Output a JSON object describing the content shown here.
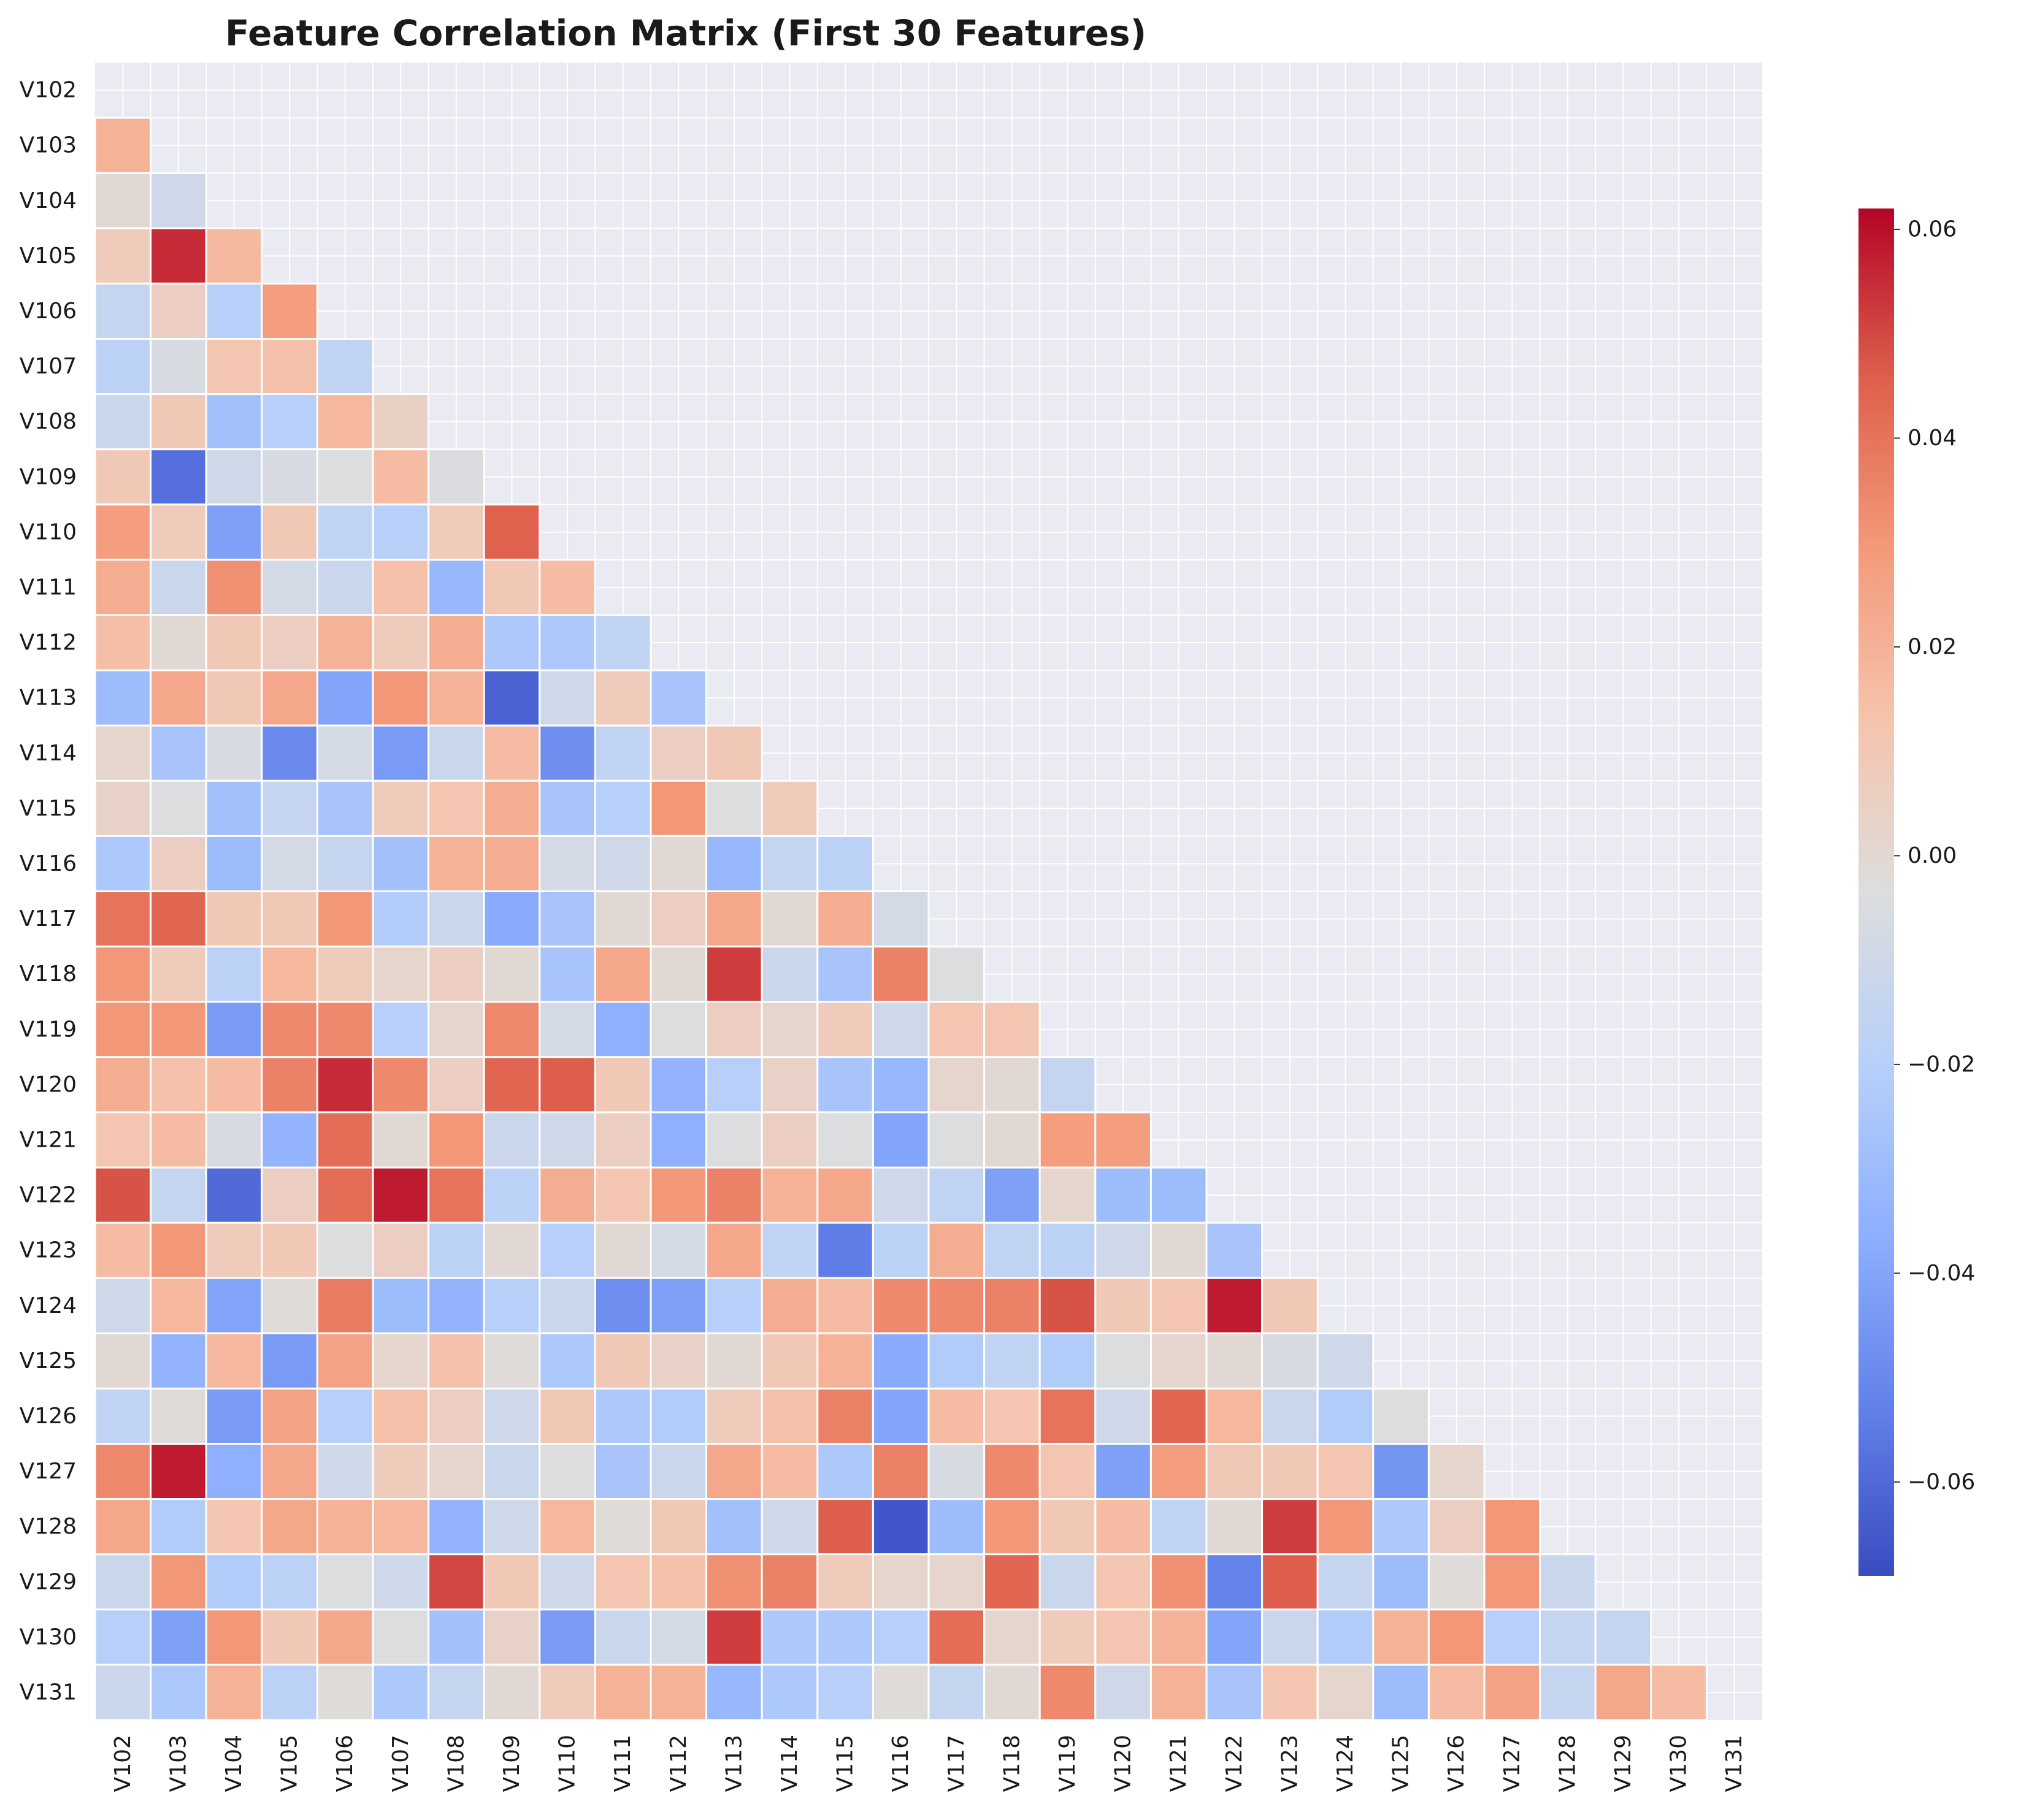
{
  "chart_data": {
    "type": "heatmap",
    "title": "Feature Correlation Matrix (First 30 Features)",
    "xlabel": "",
    "ylabel": "",
    "mask": "upper-triangle including diagonal",
    "labels": [
      "V102",
      "V103",
      "V104",
      "V105",
      "V106",
      "V107",
      "V108",
      "V109",
      "V110",
      "V111",
      "V112",
      "V113",
      "V114",
      "V115",
      "V116",
      "V117",
      "V118",
      "V119",
      "V120",
      "V121",
      "V122",
      "V123",
      "V124",
      "V125",
      "V126",
      "V127",
      "V128",
      "V129",
      "V130",
      "V131"
    ],
    "colormap": "coolwarm",
    "grid": true,
    "grid_color": "#ffffff",
    "background_color": "#eaeaf2",
    "colorbar": {
      "placement": "right",
      "range": [
        -0.069,
        0.062
      ],
      "ticks": [
        -0.06,
        -0.04,
        -0.02,
        0.0,
        0.02,
        0.04,
        0.06
      ],
      "tick_labels": [
        "−0.06",
        "−0.04",
        "−0.02",
        "0.00",
        "0.02",
        "0.04",
        "0.06"
      ]
    },
    "values": [
      [],
      [
        0.02
      ],
      [
        0.0,
        -0.01
      ],
      [
        0.008,
        0.055,
        0.017
      ],
      [
        -0.014,
        0.006,
        -0.02,
        0.028
      ],
      [
        -0.018,
        -0.006,
        0.012,
        0.014,
        -0.016
      ],
      [
        -0.012,
        0.01,
        -0.028,
        -0.02,
        0.018,
        0.005
      ],
      [
        0.01,
        -0.058,
        -0.01,
        -0.006,
        -0.004,
        0.016,
        -0.005
      ],
      [
        0.028,
        0.008,
        -0.042,
        0.01,
        -0.016,
        -0.02,
        0.008,
        0.045
      ],
      [
        0.022,
        -0.012,
        0.032,
        -0.008,
        -0.012,
        0.014,
        -0.032,
        0.01,
        0.016
      ],
      [
        0.015,
        0.0,
        0.01,
        0.006,
        0.02,
        0.008,
        0.022,
        -0.024,
        -0.024,
        -0.016
      ],
      [
        -0.03,
        0.024,
        0.01,
        0.024,
        -0.04,
        0.03,
        0.02,
        -0.062,
        -0.01,
        0.008,
        -0.026
      ],
      [
        0.002,
        -0.026,
        -0.006,
        -0.05,
        -0.008,
        -0.044,
        -0.012,
        0.016,
        -0.048,
        -0.016,
        0.006,
        0.01
      ],
      [
        0.004,
        -0.004,
        -0.028,
        -0.014,
        -0.026,
        0.008,
        0.012,
        0.022,
        -0.026,
        -0.02,
        0.03,
        -0.004,
        0.008
      ],
      [
        -0.024,
        0.006,
        -0.03,
        -0.008,
        -0.014,
        -0.028,
        0.02,
        0.022,
        -0.008,
        -0.01,
        0.0,
        -0.032,
        -0.014,
        -0.018
      ],
      [
        0.04,
        0.044,
        0.01,
        0.01,
        0.03,
        -0.022,
        -0.012,
        -0.038,
        -0.026,
        0.0,
        0.006,
        0.024,
        0.0,
        0.022,
        -0.008
      ],
      [
        0.03,
        0.008,
        -0.018,
        0.018,
        0.008,
        0.002,
        0.006,
        0.0,
        -0.026,
        0.024,
        0.0,
        0.052,
        -0.012,
        -0.026,
        0.036,
        -0.004
      ],
      [
        0.03,
        0.03,
        -0.044,
        0.034,
        0.034,
        -0.02,
        0.002,
        0.034,
        -0.008,
        -0.036,
        -0.004,
        0.006,
        0.002,
        0.008,
        -0.01,
        0.012,
        0.012
      ],
      [
        0.022,
        0.014,
        0.016,
        0.036,
        0.055,
        0.034,
        0.006,
        0.044,
        0.046,
        0.01,
        -0.034,
        -0.02,
        0.004,
        -0.026,
        -0.032,
        0.002,
        0.0,
        -0.014
      ],
      [
        0.012,
        0.016,
        -0.006,
        -0.034,
        0.042,
        0.0,
        0.03,
        -0.012,
        -0.01,
        0.006,
        -0.036,
        -0.004,
        0.006,
        -0.004,
        -0.04,
        -0.004,
        0.0,
        0.028,
        0.028
      ],
      [
        0.048,
        -0.014,
        -0.06,
        0.006,
        0.042,
        0.058,
        0.04,
        -0.018,
        0.022,
        0.012,
        0.03,
        0.036,
        0.02,
        0.024,
        -0.01,
        -0.016,
        -0.042,
        0.002,
        -0.03,
        -0.03
      ],
      [
        0.016,
        0.03,
        0.008,
        0.01,
        -0.004,
        0.006,
        -0.018,
        0.0,
        -0.02,
        0.0,
        -0.008,
        0.024,
        -0.016,
        -0.054,
        -0.018,
        0.022,
        -0.016,
        -0.018,
        -0.01,
        0.0,
        -0.026
      ],
      [
        -0.01,
        0.018,
        -0.04,
        -0.002,
        0.038,
        -0.03,
        -0.034,
        -0.02,
        -0.012,
        -0.048,
        -0.042,
        -0.02,
        0.022,
        0.016,
        0.034,
        0.034,
        0.036,
        0.048,
        0.01,
        0.012,
        0.058,
        0.01
      ],
      [
        0.0,
        -0.034,
        0.018,
        -0.044,
        0.026,
        0.002,
        0.014,
        -0.002,
        -0.024,
        0.01,
        0.004,
        0.0,
        0.01,
        0.02,
        -0.038,
        -0.022,
        -0.016,
        -0.022,
        -0.004,
        0.002,
        0.0,
        -0.006,
        -0.01
      ],
      [
        -0.016,
        -0.002,
        -0.044,
        0.026,
        -0.02,
        0.014,
        0.006,
        -0.01,
        0.01,
        -0.024,
        -0.022,
        0.008,
        0.014,
        0.036,
        -0.04,
        0.016,
        0.012,
        0.04,
        -0.01,
        0.044,
        0.018,
        -0.012,
        -0.022,
        -0.004
      ],
      [
        0.034,
        0.058,
        -0.036,
        0.024,
        -0.01,
        0.008,
        0.002,
        -0.012,
        -0.004,
        -0.026,
        -0.012,
        0.024,
        0.016,
        -0.024,
        0.036,
        -0.006,
        0.034,
        0.012,
        -0.042,
        0.028,
        0.01,
        0.01,
        0.012,
        -0.046,
        0.002
      ],
      [
        0.024,
        -0.022,
        0.012,
        0.024,
        0.02,
        0.018,
        -0.034,
        -0.01,
        0.018,
        -0.002,
        0.01,
        -0.028,
        -0.01,
        0.046,
        -0.066,
        -0.03,
        0.03,
        0.01,
        0.016,
        -0.016,
        0.0,
        0.052,
        0.03,
        -0.024,
        0.006,
        0.03
      ],
      [
        -0.012,
        0.03,
        -0.022,
        -0.018,
        -0.004,
        -0.01,
        0.05,
        0.01,
        -0.01,
        0.012,
        0.014,
        0.032,
        0.036,
        0.008,
        0.002,
        0.002,
        0.044,
        -0.012,
        0.012,
        0.032,
        -0.052,
        0.046,
        -0.014,
        -0.03,
        -0.002,
        0.03,
        -0.012
      ],
      [
        -0.02,
        -0.042,
        0.03,
        0.01,
        0.024,
        -0.004,
        -0.028,
        0.004,
        -0.044,
        -0.012,
        -0.008,
        0.052,
        -0.024,
        -0.024,
        -0.02,
        0.042,
        0.002,
        0.008,
        0.012,
        0.02,
        -0.04,
        -0.012,
        -0.022,
        0.02,
        0.03,
        -0.02,
        -0.014,
        -0.014
      ],
      [
        -0.012,
        -0.024,
        0.02,
        -0.018,
        -0.002,
        -0.024,
        -0.014,
        0.0,
        0.008,
        0.02,
        0.02,
        -0.032,
        -0.024,
        -0.02,
        -0.002,
        -0.014,
        0.0,
        0.034,
        -0.01,
        0.02,
        -0.026,
        0.012,
        0.002,
        -0.03,
        0.016,
        0.026,
        -0.014,
        0.024,
        0.016
      ]
    ]
  }
}
